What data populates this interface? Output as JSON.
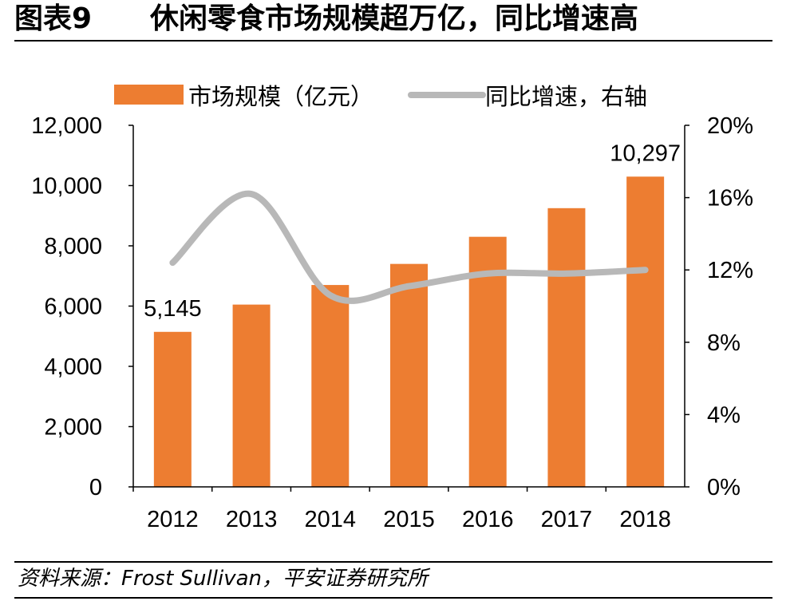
{
  "figure": {
    "number": "图表9",
    "title": "休闲零食市场规模超万亿，同比增速高",
    "source": "资料来源：Frost Sullivan，平安证券研究所"
  },
  "chart_data": {
    "type": "bar",
    "categories": [
      "2012",
      "2013",
      "2014",
      "2015",
      "2016",
      "2017",
      "2018"
    ],
    "series": [
      {
        "name": "市场规模（亿元）",
        "type": "bar",
        "axis": "left",
        "color": "#ED7D31",
        "values": [
          5145,
          6050,
          6700,
          7400,
          8300,
          9250,
          10297
        ]
      },
      {
        "name": "同比增速，右轴",
        "type": "line",
        "axis": "right",
        "color": "#B8B8B8",
        "values": [
          0.124,
          0.162,
          0.106,
          0.111,
          0.118,
          0.118,
          0.12
        ]
      }
    ],
    "data_labels": [
      {
        "category": "2012",
        "text": "5,145"
      },
      {
        "category": "2018",
        "text": "10,297"
      }
    ],
    "y_left": {
      "lim": [
        0,
        12000
      ],
      "ticks": [
        0,
        2000,
        4000,
        6000,
        8000,
        10000,
        12000
      ],
      "tick_labels": [
        "0",
        "2,000",
        "4,000",
        "6,000",
        "8,000",
        "10,000",
        "12,000"
      ]
    },
    "y_right": {
      "lim": [
        0,
        0.2
      ],
      "ticks": [
        0,
        0.04,
        0.08,
        0.12,
        0.16,
        0.2
      ],
      "tick_labels": [
        "0%",
        "4%",
        "8%",
        "12%",
        "16%",
        "20%"
      ]
    },
    "legend": {
      "position": "top-left"
    },
    "grid": false
  }
}
